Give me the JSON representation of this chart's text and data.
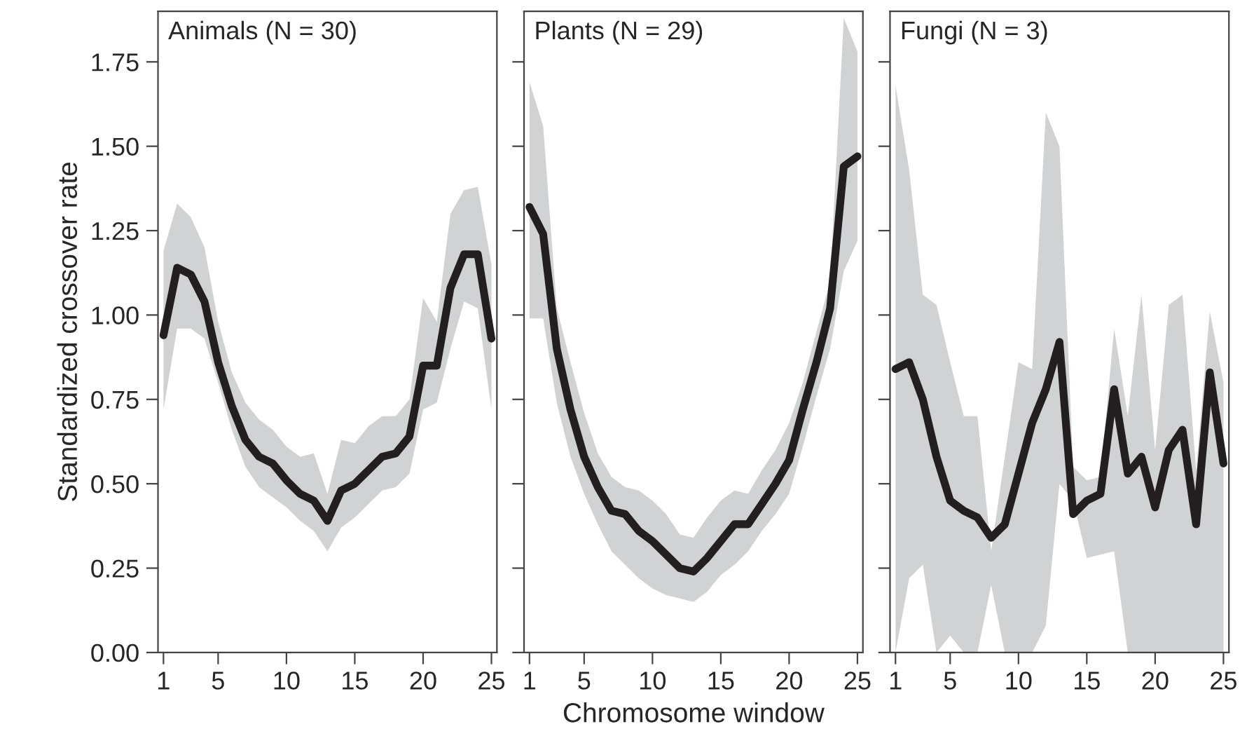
{
  "chart_data": [
    {
      "type": "line",
      "title": "Animals (N = 30)",
      "ylabel": "Standardized crossover rate",
      "x": [
        1,
        2,
        3,
        4,
        5,
        6,
        7,
        8,
        9,
        10,
        11,
        12,
        13,
        14,
        15,
        16,
        17,
        18,
        19,
        20,
        21,
        22,
        23,
        24,
        25
      ],
      "xlim": [
        0.6,
        25.4
      ],
      "xticks": [
        1,
        5,
        10,
        15,
        20,
        25
      ],
      "ylim": [
        0,
        1.9
      ],
      "yticks": [
        {
          "value": 0,
          "label": "0.00"
        },
        0.25,
        {
          "value": 0.5,
          "label": "0.50"
        },
        0.75,
        {
          "value": 1,
          "label": "1.00"
        },
        1.25,
        {
          "value": 1.5,
          "label": "1.50"
        },
        1.75
      ],
      "grid": false,
      "legend": false,
      "series": [
        {
          "color": "#231f20",
          "values": [
            0.94,
            1.14,
            1.12,
            1.04,
            0.86,
            0.73,
            0.63,
            0.58,
            0.56,
            0.51,
            0.47,
            0.45,
            0.39,
            0.48,
            0.5,
            0.54,
            0.58,
            0.59,
            0.64,
            0.85,
            0.85,
            1.08,
            1.18,
            1.18,
            0.93
          ],
          "lower": [
            0.72,
            0.96,
            0.96,
            0.93,
            0.8,
            0.66,
            0.55,
            0.49,
            0.46,
            0.43,
            0.39,
            0.36,
            0.3,
            0.37,
            0.4,
            0.44,
            0.48,
            0.49,
            0.53,
            0.72,
            0.74,
            0.9,
            1.04,
            1.02,
            0.72
          ],
          "upper": [
            1.19,
            1.33,
            1.29,
            1.2,
            0.98,
            0.83,
            0.74,
            0.69,
            0.66,
            0.61,
            0.58,
            0.59,
            0.47,
            0.63,
            0.62,
            0.67,
            0.7,
            0.7,
            0.75,
            1.05,
            0.98,
            1.3,
            1.37,
            1.38,
            1.15
          ]
        }
      ]
    },
    {
      "type": "line",
      "title": "Plants (N = 29)",
      "xlabel": "Chromosome window",
      "x": [
        1,
        2,
        3,
        4,
        5,
        6,
        7,
        8,
        9,
        10,
        11,
        12,
        13,
        14,
        15,
        16,
        17,
        18,
        19,
        20,
        21,
        22,
        23,
        24,
        25
      ],
      "xlim": [
        0.6,
        25.4
      ],
      "xticks": [
        1,
        5,
        10,
        15,
        20,
        25
      ],
      "ylim": [
        0,
        1.9
      ],
      "yticks": [
        0,
        0.25,
        0.5,
        0.75,
        1,
        1.25,
        1.5,
        1.75
      ],
      "tick_labels": "x",
      "grid": false,
      "legend": false,
      "series": [
        {
          "color": "#231f20",
          "values": [
            1.32,
            1.24,
            0.9,
            0.72,
            0.58,
            0.49,
            0.42,
            0.41,
            0.36,
            0.33,
            0.29,
            0.25,
            0.24,
            0.28,
            0.33,
            0.38,
            0.38,
            0.44,
            0.5,
            0.57,
            0.72,
            0.86,
            1.02,
            1.44,
            1.47
          ],
          "lower": [
            0.99,
            0.99,
            0.74,
            0.58,
            0.47,
            0.38,
            0.3,
            0.26,
            0.22,
            0.19,
            0.17,
            0.16,
            0.15,
            0.18,
            0.23,
            0.26,
            0.3,
            0.36,
            0.41,
            0.47,
            0.61,
            0.76,
            0.9,
            1.13,
            1.22
          ],
          "upper": [
            1.69,
            1.56,
            1.02,
            0.86,
            0.71,
            0.59,
            0.52,
            0.49,
            0.48,
            0.45,
            0.41,
            0.35,
            0.34,
            0.4,
            0.45,
            0.48,
            0.47,
            0.54,
            0.6,
            0.68,
            0.8,
            0.95,
            1.1,
            1.88,
            1.78
          ]
        }
      ]
    },
    {
      "type": "line",
      "title": "Fungi (N = 3)",
      "x": [
        1,
        2,
        3,
        4,
        5,
        6,
        7,
        8,
        9,
        10,
        11,
        12,
        13,
        14,
        15,
        16,
        17,
        18,
        19,
        20,
        21,
        22,
        23,
        24,
        25
      ],
      "xlim": [
        0.6,
        25.4
      ],
      "xticks": [
        1,
        5,
        10,
        15,
        20,
        25
      ],
      "ylim": [
        0,
        1.9
      ],
      "yticks": [
        0,
        0.25,
        0.5,
        0.75,
        1,
        1.25,
        1.5,
        1.75
      ],
      "tick_labels": "x",
      "grid": false,
      "legend": false,
      "series": [
        {
          "color": "#231f20",
          "values": [
            0.84,
            0.86,
            0.75,
            0.58,
            0.45,
            0.42,
            0.4,
            0.34,
            0.38,
            0.53,
            0.68,
            0.78,
            0.92,
            0.41,
            0.45,
            0.47,
            0.78,
            0.53,
            0.58,
            0.43,
            0.6,
            0.66,
            0.38,
            0.83,
            0.56
          ],
          "lower": [
            0.0,
            0.22,
            0.26,
            0.0,
            0.05,
            0.0,
            0.0,
            0.2,
            0.0,
            0.0,
            0.0,
            0.08,
            0.5,
            0.45,
            0.28,
            0.29,
            0.3,
            0.0,
            0.0,
            0.0,
            0.0,
            0.0,
            0.0,
            0.0,
            0.0
          ],
          "upper": [
            1.68,
            1.43,
            1.06,
            1.03,
            0.86,
            0.7,
            0.7,
            0.3,
            0.58,
            0.86,
            0.84,
            1.6,
            1.5,
            0.55,
            0.51,
            0.52,
            0.96,
            0.7,
            1.06,
            0.6,
            1.03,
            1.06,
            0.54,
            1.01,
            0.8
          ]
        }
      ]
    }
  ]
}
